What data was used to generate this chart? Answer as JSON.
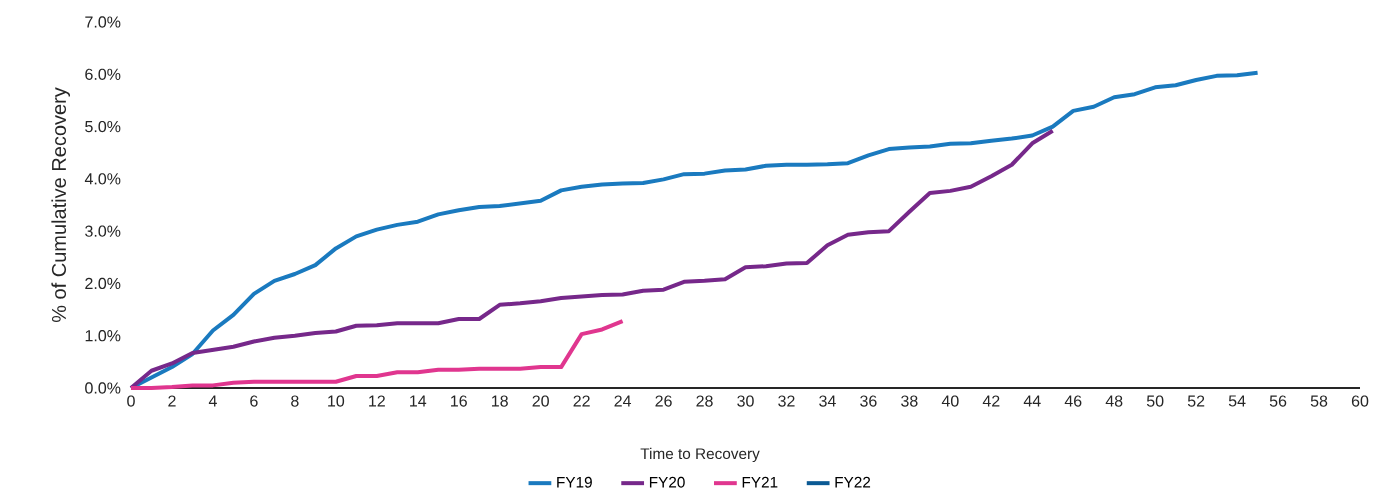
{
  "chart_data": {
    "type": "line",
    "xlabel": "Time to Recovery",
    "ylabel": "% of Cumulative Recovery",
    "legend": "bottom",
    "xlim": [
      0,
      60
    ],
    "ylim": [
      0,
      7
    ],
    "xticks": [
      0,
      2,
      4,
      6,
      8,
      10,
      12,
      14,
      16,
      18,
      20,
      22,
      24,
      26,
      28,
      30,
      32,
      34,
      36,
      38,
      40,
      42,
      44,
      46,
      48,
      50,
      52,
      54,
      56,
      58,
      60
    ],
    "yticks": [
      {
        "value": 0,
        "label": "0.0%"
      },
      {
        "value": 1,
        "label": "1.0%"
      },
      {
        "value": 2,
        "label": "2.0%"
      },
      {
        "value": 3,
        "label": "3.0%"
      },
      {
        "value": 4,
        "label": "4.0%"
      },
      {
        "value": 5,
        "label": "5.0%"
      },
      {
        "value": 6,
        "label": "6.0%"
      },
      {
        "value": 7,
        "label": "7.0%"
      }
    ],
    "series": [
      {
        "name": "FY19",
        "color": "#1a7abf",
        "x": [
          0,
          1,
          2,
          3,
          4,
          5,
          6,
          7,
          8,
          9,
          10,
          11,
          12,
          13,
          14,
          15,
          16,
          17,
          18,
          19,
          20,
          21,
          22,
          23,
          24,
          25,
          26,
          27,
          28,
          29,
          30,
          31,
          32,
          33,
          34,
          35,
          36,
          37,
          38,
          39,
          40,
          41,
          42,
          43,
          44,
          45,
          46,
          47,
          48,
          49,
          50,
          51,
          52,
          53,
          54,
          55
        ],
        "values": [
          0,
          0.2,
          0.4,
          0.65,
          1.1,
          1.4,
          1.8,
          2.05,
          2.18,
          2.35,
          2.67,
          2.9,
          3.03,
          3.12,
          3.18,
          3.32,
          3.4,
          3.46,
          3.48,
          3.53,
          3.58,
          3.78,
          3.85,
          3.89,
          3.91,
          3.92,
          3.99,
          4.09,
          4.1,
          4.16,
          4.18,
          4.25,
          4.27,
          4.27,
          4.28,
          4.3,
          4.45,
          4.57,
          4.6,
          4.62,
          4.67,
          4.68,
          4.73,
          4.77,
          4.83,
          5.0,
          5.3,
          5.38,
          5.56,
          5.62,
          5.75,
          5.79,
          5.89,
          5.97,
          5.98,
          6.03
        ]
      },
      {
        "name": "FY20",
        "color": "#76288a",
        "x": [
          0,
          1,
          2,
          3,
          4,
          5,
          6,
          7,
          8,
          9,
          10,
          11,
          12,
          13,
          14,
          15,
          16,
          17,
          18,
          19,
          20,
          21,
          22,
          23,
          24,
          25,
          26,
          27,
          28,
          29,
          30,
          31,
          32,
          33,
          34,
          35,
          36,
          37,
          38,
          39,
          40,
          41,
          42,
          43,
          44,
          45
        ],
        "values": [
          0,
          0.33,
          0.47,
          0.67,
          0.73,
          0.79,
          0.89,
          0.96,
          1.0,
          1.05,
          1.08,
          1.19,
          1.2,
          1.24,
          1.24,
          1.24,
          1.32,
          1.32,
          1.59,
          1.62,
          1.66,
          1.72,
          1.75,
          1.78,
          1.79,
          1.86,
          1.88,
          2.03,
          2.05,
          2.08,
          2.31,
          2.33,
          2.38,
          2.39,
          2.73,
          2.93,
          2.98,
          3.0,
          3.37,
          3.73,
          3.77,
          3.85,
          4.05,
          4.27,
          4.68,
          4.92
        ]
      },
      {
        "name": "FY21",
        "color": "#e0368f",
        "x": [
          0,
          1,
          2,
          3,
          4,
          5,
          6,
          7,
          8,
          9,
          10,
          11,
          12,
          13,
          14,
          15,
          16,
          17,
          18,
          19,
          20,
          21,
          22,
          23,
          24
        ],
        "values": [
          0,
          0,
          0.02,
          0.05,
          0.05,
          0.1,
          0.12,
          0.12,
          0.12,
          0.12,
          0.12,
          0.23,
          0.23,
          0.3,
          0.3,
          0.35,
          0.35,
          0.37,
          0.37,
          0.37,
          0.4,
          0.4,
          1.03,
          1.12,
          1.28
        ]
      },
      {
        "name": "FY22",
        "color": "#0b5a94"
      }
    ]
  }
}
